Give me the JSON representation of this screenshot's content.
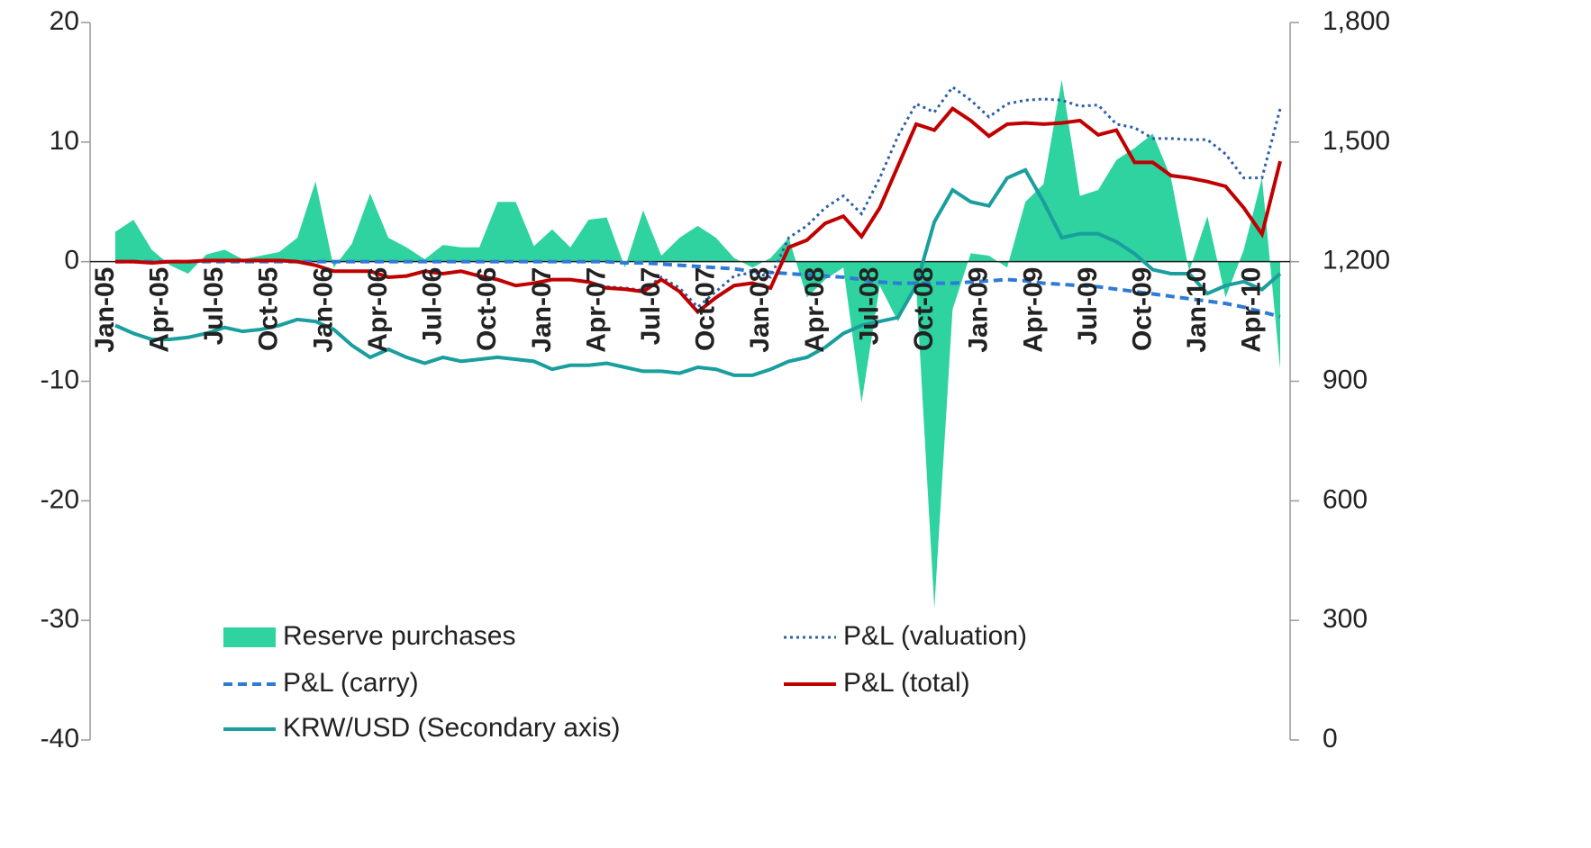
{
  "chart_data": {
    "type": "line",
    "categories": [
      "Jan-05",
      null,
      null,
      "Apr-05",
      null,
      null,
      "Jul-05",
      null,
      null,
      "Oct-05",
      null,
      null,
      "Jan-06",
      null,
      null,
      "Apr-06",
      null,
      null,
      "Jul-06",
      null,
      null,
      "Oct-06",
      null,
      null,
      "Jan-07",
      null,
      null,
      "Apr-07",
      null,
      null,
      "Jul-07",
      null,
      null,
      "Oct-07",
      null,
      null,
      "Jan-08",
      null,
      null,
      "Apr-08",
      null,
      null,
      "Jul-08",
      null,
      null,
      "Oct-08",
      null,
      null,
      "Jan-09",
      null,
      null,
      "Apr-09",
      null,
      null,
      "Jul-09",
      null,
      null,
      "Oct-09",
      null,
      null,
      "Jan-10",
      null,
      null,
      "Apr-10",
      null
    ],
    "ylim": [
      -40,
      20
    ],
    "yticks": [
      -40,
      -30,
      -20,
      -10,
      0,
      10,
      20
    ],
    "y2lim": [
      0,
      1800
    ],
    "y2ticks": [
      0,
      300,
      600,
      900,
      {
        "value": 1200,
        "label": "1,200"
      },
      {
        "value": 1500,
        "label": "1,500"
      },
      {
        "value": 1800,
        "label": "1,800"
      }
    ],
    "series": [
      {
        "name": "Reserve purchases",
        "color": "#2ed3a0",
        "style": "area",
        "values": [
          2.5,
          3.5,
          1,
          -0.3,
          -1,
          0.6,
          1,
          0.2,
          0.5,
          0.8,
          2,
          6.7,
          -0.5,
          1.5,
          5.7,
          2,
          1.2,
          0.2,
          1.4,
          1.2,
          1.2,
          5,
          5,
          1.3,
          2.7,
          1.2,
          3.5,
          3.7,
          -0.5,
          4.3,
          0.5,
          2,
          3,
          2,
          0.3,
          -0.5,
          0.3,
          2,
          -3,
          -1.5,
          -0.5,
          -11.8,
          -2,
          -5,
          -2,
          -29,
          -4,
          0.7,
          0.5,
          -0.5,
          5,
          6.5,
          15.2,
          5.5,
          6,
          8.5,
          9.5,
          10.7,
          7,
          -0.8,
          3.8,
          -3,
          1,
          7,
          -9
        ]
      },
      {
        "name": "P&L (valuation)",
        "color": "#2e5fa8",
        "style": "dotted",
        "values": [
          0,
          0,
          -0.1,
          0,
          0,
          0.1,
          0.1,
          0.1,
          0.1,
          0.1,
          0,
          -0.3,
          -0.8,
          -0.8,
          -0.8,
          -1.3,
          -1.2,
          -0.8,
          -1,
          -0.8,
          -1.2,
          -1.5,
          -2,
          -1.8,
          -1.5,
          -1.5,
          -1.7,
          -2.1,
          -2.2,
          -2.4,
          -1.3,
          -2.2,
          -3.8,
          -2.5,
          -1.2,
          -0.9,
          -1.3,
          2,
          3,
          4.5,
          5.5,
          4,
          7,
          10.5,
          13.2,
          12.5,
          14.6,
          13.5,
          12.1,
          13.2,
          13.5,
          13.6,
          13.5,
          13,
          13.1,
          11.5,
          11.2,
          10.3,
          10.3,
          10.2,
          10.2,
          9,
          7,
          7,
          12.8
        ]
      },
      {
        "name": "P&L (carry)",
        "color": "#2e7bd6",
        "style": "dashed",
        "values": [
          0,
          0,
          0,
          0,
          0,
          0,
          0,
          0,
          0,
          0,
          0,
          0,
          0,
          0,
          0,
          0,
          0,
          0,
          0,
          0,
          0,
          0,
          0,
          0,
          0,
          0,
          0,
          0,
          -0.1,
          -0.1,
          -0.2,
          -0.3,
          -0.4,
          -0.5,
          -0.6,
          -0.8,
          -0.9,
          -1.0,
          -1.1,
          -1.2,
          -1.3,
          -1.5,
          -1.7,
          -1.8,
          -1.8,
          -1.8,
          -1.8,
          -1.7,
          -1.6,
          -1.5,
          -1.6,
          -1.8,
          -1.9,
          -2.0,
          -2.1,
          -2.3,
          -2.5,
          -2.7,
          -2.9,
          -3.1,
          -3.3,
          -3.5,
          -3.8,
          -4.2,
          -4.6
        ]
      },
      {
        "name": "P&L (total)",
        "color": "#c00000",
        "style": "solid",
        "values": [
          0,
          0,
          -0.1,
          0,
          0,
          0.1,
          0.1,
          0.1,
          0.1,
          0.1,
          0,
          -0.3,
          -0.8,
          -0.8,
          -0.8,
          -1.3,
          -1.2,
          -0.8,
          -1,
          -0.8,
          -1.2,
          -1.5,
          -2,
          -1.8,
          -1.5,
          -1.5,
          -1.7,
          -2.2,
          -2.3,
          -2.5,
          -1.5,
          -2.5,
          -4.2,
          -3,
          -2,
          -1.8,
          -2.2,
          1.2,
          1.8,
          3.2,
          3.8,
          2.1,
          4.5,
          8,
          11.5,
          11,
          12.8,
          11.8,
          10.5,
          11.5,
          11.6,
          11.5,
          11.6,
          11.8,
          10.6,
          11,
          8.3,
          8.3,
          7.2,
          7,
          6.7,
          6.3,
          4.5,
          2.3,
          8.4
        ]
      },
      {
        "name": "KRW/USD (Secondary axis)",
        "color": "#1a9e9e",
        "style": "solid",
        "axis": "y2",
        "values": [
          1040,
          1020,
          1005,
          1005,
          1010,
          1020,
          1035,
          1025,
          1030,
          1040,
          1055,
          1050,
          1030,
          990,
          960,
          980,
          960,
          945,
          960,
          950,
          955,
          960,
          955,
          950,
          930,
          940,
          940,
          945,
          935,
          925,
          925,
          920,
          935,
          930,
          915,
          915,
          930,
          950,
          960,
          985,
          1020,
          1040,
          1050,
          1060,
          1140,
          1300,
          1380,
          1350,
          1340,
          1410,
          1430,
          1350,
          1260,
          1270,
          1270,
          1250,
          1220,
          1180,
          1170,
          1170,
          1120,
          1140,
          1150,
          1130,
          1170
        ]
      }
    ],
    "legend": "bottom"
  }
}
